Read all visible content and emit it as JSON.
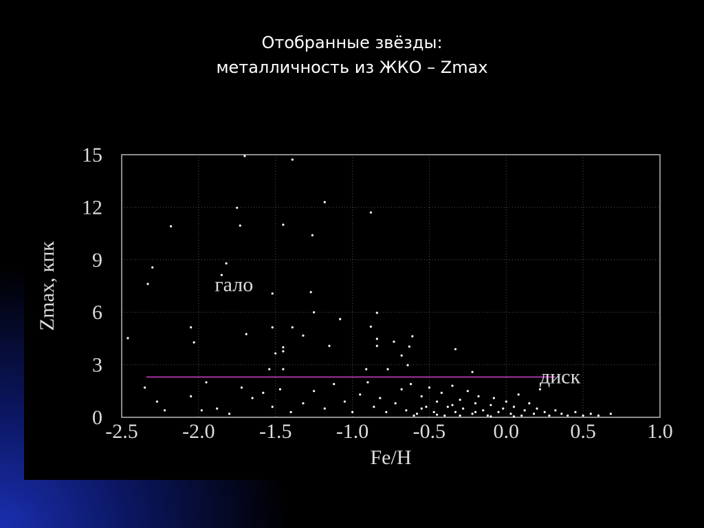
{
  "chart_data": {
    "type": "scatter",
    "title": "Отобранные звёзды:",
    "subtitle": "металличность из ЖКО – Zmax",
    "xlabel": "Fe/H",
    "ylabel": "Zmax, кпк",
    "xlim": [
      -2.5,
      1.0
    ],
    "ylim": [
      0,
      15
    ],
    "xticks": [
      -2.5,
      {
        "value": -2,
        "label": "-2.0"
      },
      -1.5,
      {
        "value": -1,
        "label": "-1.0"
      },
      -0.5,
      {
        "value": 0,
        "label": "0.0"
      },
      0.5,
      {
        "value": 1,
        "label": "1.0"
      }
    ],
    "yticks": [
      0,
      3,
      6,
      9,
      12,
      15
    ],
    "grid": true,
    "color": "#ffffff",
    "x": [
      -1.7,
      -1.39,
      -1.18,
      -1.75,
      -0.88,
      -2.18,
      -1.73,
      -1.45,
      -1.26,
      -2.3,
      -1.82,
      -1.85,
      -2.33,
      -1.27,
      -1.52,
      -1.25,
      -0.84,
      -1.08,
      -2.05,
      -1.52,
      -1.39,
      -0.88,
      -1.69,
      -1.32,
      -2.46,
      -2.03,
      -0.84,
      -0.73,
      -0.61,
      -1.45,
      -1.15,
      -0.84,
      -1.5,
      -1.45,
      -0.63,
      -0.68,
      -0.33,
      -0.64,
      -1.54,
      -1.45,
      -0.91,
      -0.77,
      -0.22,
      -2.35,
      -2.27,
      -2.22,
      -2.05,
      -1.98,
      -1.95,
      -1.88,
      -1.8,
      -1.72,
      -1.65,
      -1.58,
      -1.52,
      -1.47,
      -1.4,
      -1.32,
      -1.25,
      -1.18,
      -1.12,
      -1.05,
      -1.0,
      -0.95,
      -0.9,
      -0.86,
      -0.82,
      -0.78,
      -0.72,
      -0.68,
      -0.65,
      -0.62,
      -0.58,
      -0.55,
      -0.52,
      -0.5,
      -0.47,
      -0.45,
      -0.42,
      -0.4,
      -0.38,
      -0.35,
      -0.33,
      -0.3,
      -0.28,
      -0.25,
      -0.22,
      -0.2,
      -0.18,
      -0.15,
      -0.12,
      -0.1,
      -0.08,
      -0.05,
      -0.02,
      0.0,
      0.03,
      0.05,
      0.08,
      0.1,
      0.12,
      0.15,
      0.18,
      0.2,
      0.22,
      0.25,
      0.28,
      0.32,
      0.36,
      0.4,
      0.45,
      0.5,
      0.55,
      0.6,
      0.68,
      -0.6,
      -0.3,
      -0.1,
      0.05,
      -0.45,
      -0.2,
      -0.55,
      -0.35
    ],
    "values": [
      14.92,
      14.72,
      12.29,
      11.97,
      11.7,
      10.91,
      10.95,
      11.0,
      10.4,
      8.56,
      8.79,
      8.13,
      7.62,
      7.15,
      7.07,
      6.0,
      5.97,
      5.61,
      5.14,
      5.14,
      5.14,
      5.18,
      4.75,
      4.67,
      4.52,
      4.28,
      4.48,
      4.32,
      4.63,
      4.0,
      4.08,
      4.08,
      3.65,
      3.77,
      4.04,
      3.53,
      3.89,
      2.98,
      2.75,
      2.75,
      2.75,
      2.75,
      2.59,
      1.7,
      0.9,
      0.4,
      1.2,
      0.4,
      2.0,
      0.5,
      0.2,
      1.7,
      1.1,
      1.4,
      0.6,
      1.6,
      0.3,
      0.8,
      1.5,
      0.5,
      1.9,
      0.9,
      0.3,
      1.3,
      2.0,
      0.6,
      1.1,
      0.3,
      0.8,
      1.6,
      0.4,
      1.9,
      0.2,
      1.2,
      0.6,
      1.7,
      0.3,
      0.9,
      1.4,
      0.1,
      0.6,
      1.8,
      0.3,
      1.0,
      0.5,
      1.5,
      0.2,
      0.8,
      1.2,
      0.4,
      0.1,
      0.7,
      1.1,
      0.3,
      0.5,
      0.9,
      0.2,
      0.6,
      1.3,
      0.1,
      0.4,
      0.8,
      0.2,
      0.5,
      1.6,
      0.3,
      0.1,
      0.4,
      0.2,
      0.1,
      0.3,
      0.1,
      0.2,
      0.1,
      0.2,
      0.1,
      0.1,
      0.05,
      0.05,
      0.15,
      0.3,
      0.5,
      0.7
    ],
    "hline": {
      "y": 2.3,
      "xmin": -2.34,
      "xmax": 0.32,
      "color": "#d040d0"
    },
    "annotations": [
      {
        "text": "гало",
        "x": -1.77,
        "y": 7.2
      },
      {
        "text": "диск",
        "x": 0.35,
        "y": 1.95
      }
    ]
  }
}
